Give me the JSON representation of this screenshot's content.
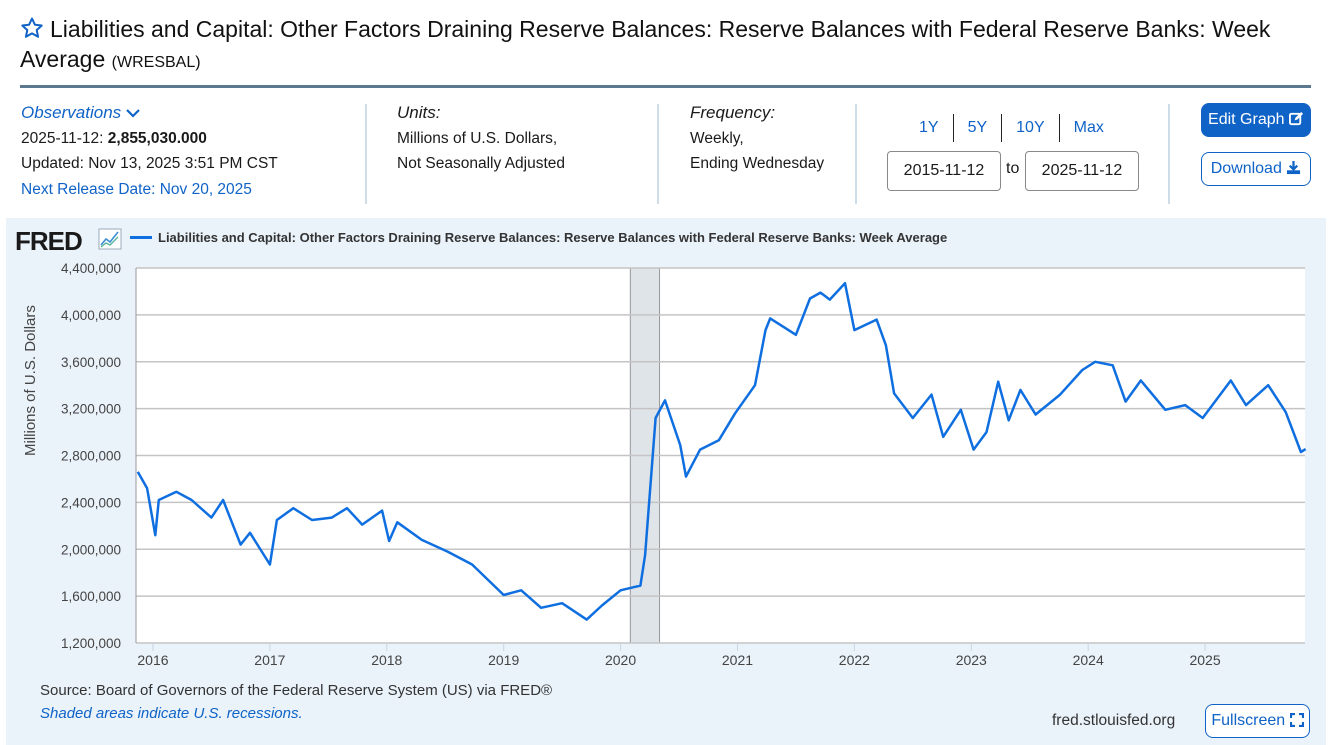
{
  "header": {
    "title": "Liabilities and Capital: Other Factors Draining Reserve Balances: Reserve Balances with Federal Reserve Banks: Week Average",
    "series_id": "(WRESBAL)",
    "favorite_icon": "star-outline-icon"
  },
  "observations": {
    "label": "Observations",
    "latest_date": "2025-11-12:",
    "latest_value": "2,855,030.000",
    "updated": "Updated: Nov 13, 2025 3:51 PM CST",
    "next_release": "Next Release Date: Nov 20, 2025"
  },
  "units": {
    "label": "Units:",
    "line1": "Millions of U.S. Dollars,",
    "line2": "Not Seasonally Adjusted"
  },
  "frequency": {
    "label": "Frequency:",
    "line1": "Weekly,",
    "line2": "Ending Wednesday"
  },
  "range": {
    "links": [
      "1Y",
      "5Y",
      "10Y",
      "Max"
    ],
    "start": "2015-11-12",
    "to": "to",
    "end": "2025-11-12"
  },
  "buttons": {
    "edit_graph": "Edit Graph",
    "download": "Download",
    "fullscreen": "Fullscreen"
  },
  "footer": {
    "source": "Source: Board of Governors of the Federal Reserve System (US) via FRED®",
    "shaded": "Shaded areas indicate U.S. recessions.",
    "url": "fred.stlouisfed.org"
  },
  "branding": {
    "logo_text": "FRED"
  },
  "colors": {
    "accent": "#0f63c7",
    "line": "#0f6fe0",
    "panel": "#eaf2fa",
    "recession": "#dfe4e9"
  },
  "chart_data": {
    "type": "line",
    "title": "Liabilities and Capital: Other Factors Draining Reserve Balances: Reserve Balances with Federal Reserve Banks: Week Average",
    "xlabel": "",
    "ylabel": "Millions of U.S. Dollars",
    "ylim": [
      1200000,
      4400000
    ],
    "xlim": [
      "2015-11-12",
      "2025-11-12"
    ],
    "yticks": [
      1200000,
      1600000,
      2000000,
      2400000,
      2800000,
      3200000,
      3600000,
      4000000,
      4400000
    ],
    "ytick_labels": [
      "1,200,000",
      "1,600,000",
      "2,000,000",
      "2,400,000",
      "2,800,000",
      "3,200,000",
      "3,600,000",
      "4,000,000",
      "4,400,000"
    ],
    "xticks": [
      "2016",
      "2017",
      "2018",
      "2019",
      "2020",
      "2021",
      "2022",
      "2023",
      "2024",
      "2025"
    ],
    "grid": true,
    "legend": "top-left",
    "recessions": [
      {
        "start": "2020-02",
        "end": "2020-04"
      }
    ],
    "series": [
      {
        "name": "Liabilities and Capital: Other Factors Draining Reserve Balances: Reserve Balances with Federal Reserve Banks: Week Average",
        "x": [
          2015.87,
          2015.95,
          2016.02,
          2016.05,
          2016.2,
          2016.33,
          2016.5,
          2016.6,
          2016.75,
          2016.83,
          2017.0,
          2017.06,
          2017.2,
          2017.36,
          2017.53,
          2017.66,
          2017.79,
          2017.96,
          2018.02,
          2018.09,
          2018.3,
          2018.52,
          2018.73,
          2019.0,
          2019.15,
          2019.32,
          2019.5,
          2019.71,
          2019.84,
          2020.0,
          2020.17,
          2020.21,
          2020.3,
          2020.38,
          2020.51,
          2020.56,
          2020.68,
          2020.84,
          2020.98,
          2021.15,
          2021.24,
          2021.28,
          2021.5,
          2021.62,
          2021.71,
          2021.79,
          2021.92,
          2022.0,
          2022.19,
          2022.27,
          2022.34,
          2022.5,
          2022.66,
          2022.76,
          2022.91,
          2023.02,
          2023.13,
          2023.23,
          2023.32,
          2023.42,
          2023.55,
          2023.76,
          2023.95,
          2024.06,
          2024.21,
          2024.32,
          2024.45,
          2024.66,
          2024.83,
          2024.98,
          2025.22,
          2025.35,
          2025.54,
          2025.69,
          2025.82,
          2025.86
        ],
        "values": [
          2660000,
          2520000,
          2120000,
          2420000,
          2490000,
          2420000,
          2270000,
          2420000,
          2040000,
          2140000,
          1870000,
          2250000,
          2350000,
          2250000,
          2270000,
          2350000,
          2210000,
          2330000,
          2070000,
          2230000,
          2080000,
          1980000,
          1870000,
          1610000,
          1650000,
          1500000,
          1540000,
          1400000,
          1520000,
          1650000,
          1690000,
          1950000,
          3120000,
          3270000,
          2890000,
          2620000,
          2850000,
          2930000,
          3160000,
          3400000,
          3870000,
          3970000,
          3830000,
          4140000,
          4190000,
          4130000,
          4270000,
          3870000,
          3960000,
          3740000,
          3330000,
          3120000,
          3320000,
          2960000,
          3190000,
          2850000,
          3000000,
          3430000,
          3100000,
          3360000,
          3150000,
          3320000,
          3530000,
          3600000,
          3570000,
          3260000,
          3440000,
          3190000,
          3230000,
          3120000,
          3440000,
          3230000,
          3400000,
          3170000,
          2830000,
          2855030
        ]
      }
    ]
  }
}
